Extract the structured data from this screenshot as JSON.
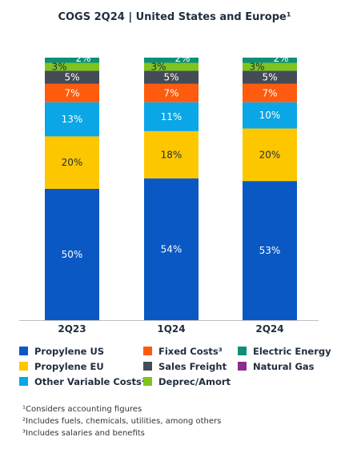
{
  "chart_data": {
    "type": "bar",
    "stacked": true,
    "title": "COGS 2Q24 | United States and Europe¹",
    "categories": [
      "2Q23",
      "1Q24",
      "2Q24"
    ],
    "series": [
      {
        "name": "Propylene US",
        "color": "#0a58c4",
        "values": [
          50,
          54,
          53
        ]
      },
      {
        "name": "Propylene EU",
        "color": "#fdc700",
        "values": [
          20,
          18,
          20
        ]
      },
      {
        "name": "Other Variable Costs²",
        "color": "#0aa6e6",
        "values": [
          13,
          11,
          10
        ]
      },
      {
        "name": "Fixed Costs³",
        "color": "#fe5b0e",
        "values": [
          7,
          7,
          7
        ]
      },
      {
        "name": "Sales Freight",
        "color": "#444c55",
        "values": [
          5,
          5,
          5
        ]
      },
      {
        "name": "Deprec/Amort",
        "color": "#7ec41d",
        "values": [
          3,
          3,
          3
        ]
      },
      {
        "name": "Electric Energy",
        "color": "#0e8f77",
        "values": [
          2,
          2,
          2
        ]
      },
      {
        "name": "Natural Gas",
        "color": "#8a2d8e",
        "values": [
          0,
          0,
          0
        ]
      }
    ],
    "labels": [
      [
        "50%",
        "54%",
        "53%"
      ],
      [
        "20%",
        "18%",
        "20%"
      ],
      [
        "13%",
        "11%",
        "10%"
      ],
      [
        "7%",
        "7%",
        "7%"
      ],
      [
        "5%",
        "5%",
        "5%"
      ],
      [
        "3%",
        "3%",
        "3%"
      ],
      [
        "2%",
        "2%",
        "2%"
      ],
      [
        "",
        "",
        ""
      ]
    ],
    "legend_order": [
      0,
      3,
      6,
      1,
      4,
      7,
      2,
      5
    ],
    "legend_position": "bottom",
    "ylim": [
      0,
      100
    ],
    "grid": false,
    "xlabel": "",
    "ylabel": ""
  },
  "footnotes": [
    "¹Considers accounting figures",
    "²Includes fuels, chemicals, utilities, among others",
    "³Includes salaries and benefits"
  ]
}
